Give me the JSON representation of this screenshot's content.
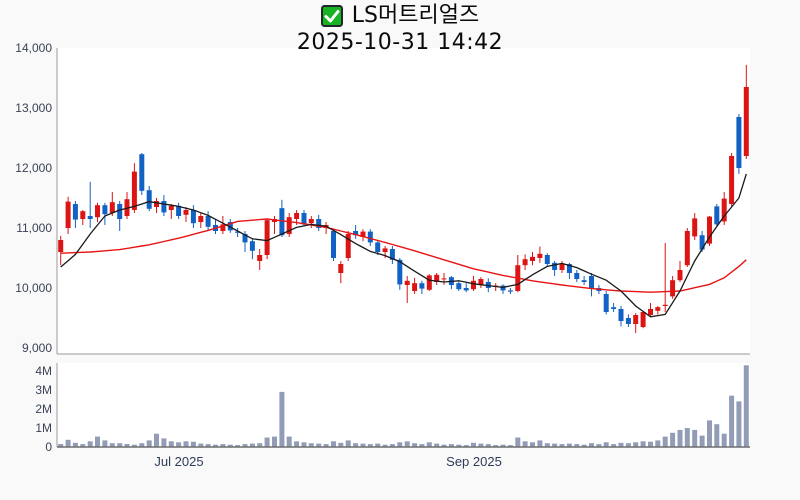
{
  "header": {
    "title": "LS머트리얼즈",
    "subtitle": "2025-10-31 14:42",
    "checkbox_icon": "green-checkbox",
    "checkbox_color": "#17b322"
  },
  "chart_data": {
    "type": "candlestick",
    "title": "LS머트리얼즈",
    "timestamp": "2025-10-31 14:42",
    "legend_position": "none",
    "grid": false,
    "price_axis": {
      "labels": [
        "14,000",
        "13,000",
        "12,000",
        "11,000",
        "10,000",
        "9,000"
      ],
      "values": [
        14000,
        13000,
        12000,
        11000,
        10000,
        9000
      ],
      "range": [
        8900,
        14000
      ]
    },
    "volume_axis": {
      "labels": [
        "4M",
        "3M",
        "2M",
        "1M",
        "0"
      ],
      "values": [
        4000000,
        3000000,
        2000000,
        1000000,
        0
      ]
    },
    "x_ticks": [
      {
        "label": "Jul 2025",
        "index": 16
      },
      {
        "label": "Sep 2025",
        "index": 56
      }
    ],
    "colors": {
      "up": "#dd1414",
      "down": "#1261c4",
      "volume_bar": "#929cb6",
      "ma_fast": "#1a1a1a",
      "ma_slow": "#e81414",
      "axis": "#9a9a9a",
      "plot_bg": "#ffffff",
      "page_bg": "#f9f9f9"
    },
    "ohlcv_order": [
      "open",
      "high",
      "low",
      "close",
      "volume_millions"
    ],
    "candles": [
      [
        10600,
        10870,
        10380,
        10800,
        0.16
      ],
      [
        11000,
        11520,
        10900,
        11440,
        0.38
      ],
      [
        11400,
        11450,
        11000,
        11140,
        0.22
      ],
      [
        11150,
        11300,
        11050,
        11280,
        0.15
      ],
      [
        11200,
        11770,
        11000,
        11150,
        0.3
      ],
      [
        11180,
        11420,
        11100,
        11380,
        0.55
      ],
      [
        11380,
        11420,
        11050,
        11230,
        0.35
      ],
      [
        11250,
        11600,
        11200,
        11430,
        0.2
      ],
      [
        11400,
        11450,
        10950,
        11150,
        0.2
      ],
      [
        11200,
        11600,
        11150,
        11480,
        0.16
      ],
      [
        11300,
        12080,
        11250,
        11940,
        0.12
      ],
      [
        12230,
        12250,
        11550,
        11620,
        0.2
      ],
      [
        11630,
        11700,
        11280,
        11320,
        0.35
      ],
      [
        11350,
        11500,
        11250,
        11450,
        0.7
      ],
      [
        11450,
        11550,
        11200,
        11260,
        0.45
      ],
      [
        11300,
        11400,
        11150,
        11370,
        0.3
      ],
      [
        11370,
        11420,
        11150,
        11200,
        0.25
      ],
      [
        11220,
        11350,
        11100,
        11300,
        0.3
      ],
      [
        11300,
        11380,
        11000,
        11080,
        0.28
      ],
      [
        11100,
        11250,
        11000,
        11200,
        0.18
      ],
      [
        11200,
        11280,
        10950,
        11020,
        0.15
      ],
      [
        11050,
        11150,
        10900,
        10950,
        0.12
      ],
      [
        10950,
        11200,
        10900,
        11060,
        0.15
      ],
      [
        11100,
        11150,
        10920,
        10960,
        0.12
      ],
      [
        10940,
        11000,
        10850,
        10920,
        0.1
      ],
      [
        10900,
        10950,
        10600,
        10760,
        0.15
      ],
      [
        10780,
        10820,
        10480,
        10620,
        0.18
      ],
      [
        10450,
        10650,
        10300,
        10550,
        0.2
      ],
      [
        10550,
        11150,
        10480,
        11130,
        0.5
      ],
      [
        11100,
        11200,
        10900,
        11150,
        0.55
      ],
      [
        11330,
        11470,
        10850,
        10880,
        2.9
      ],
      [
        10900,
        11250,
        10850,
        11180,
        0.55
      ],
      [
        11150,
        11300,
        11050,
        11250,
        0.3
      ],
      [
        11250,
        11300,
        11030,
        11060,
        0.25
      ],
      [
        11080,
        11200,
        11000,
        11150,
        0.2
      ],
      [
        11150,
        11220,
        10950,
        11000,
        0.18
      ],
      [
        11000,
        11100,
        10900,
        11050,
        0.15
      ],
      [
        10950,
        10980,
        10450,
        10500,
        0.3
      ],
      [
        10250,
        10450,
        10080,
        10400,
        0.22
      ],
      [
        10500,
        10950,
        10450,
        10900,
        0.35
      ],
      [
        10950,
        11050,
        10820,
        10880,
        0.2
      ],
      [
        10850,
        10980,
        10780,
        10940,
        0.18
      ],
      [
        10940,
        10980,
        10700,
        10760,
        0.15
      ],
      [
        10760,
        10800,
        10550,
        10600,
        0.18
      ],
      [
        10600,
        10700,
        10500,
        10660,
        0.12
      ],
      [
        10650,
        10700,
        10400,
        10470,
        0.15
      ],
      [
        10470,
        10500,
        9970,
        10060,
        0.25
      ],
      [
        10050,
        10200,
        9750,
        10120,
        0.3
      ],
      [
        9950,
        10170,
        9900,
        10080,
        0.2
      ],
      [
        10080,
        10120,
        9900,
        9990,
        0.15
      ],
      [
        9970,
        10230,
        9950,
        10210,
        0.25
      ],
      [
        10100,
        10250,
        10050,
        10220,
        0.18
      ],
      [
        10150,
        10250,
        10050,
        10160,
        0.12
      ],
      [
        10180,
        10200,
        9980,
        10050,
        0.15
      ],
      [
        10080,
        10120,
        9950,
        9980,
        0.12
      ],
      [
        10000,
        10080,
        9930,
        9960,
        0.1
      ],
      [
        9980,
        10200,
        9950,
        10120,
        0.22
      ],
      [
        10050,
        10180,
        10000,
        10150,
        0.18
      ],
      [
        10100,
        10160,
        9930,
        10000,
        0.15
      ],
      [
        10020,
        10080,
        9950,
        10040,
        0.1
      ],
      [
        10040,
        10060,
        9900,
        9960,
        0.12
      ],
      [
        9960,
        10000,
        9900,
        9940,
        0.1
      ],
      [
        9950,
        10550,
        9930,
        10380,
        0.5
      ],
      [
        10380,
        10560,
        10300,
        10480,
        0.3
      ],
      [
        10450,
        10600,
        10380,
        10520,
        0.25
      ],
      [
        10500,
        10690,
        10420,
        10570,
        0.35
      ],
      [
        10550,
        10580,
        10350,
        10400,
        0.2
      ],
      [
        10420,
        10450,
        10200,
        10300,
        0.18
      ],
      [
        10300,
        10450,
        10250,
        10400,
        0.15
      ],
      [
        10400,
        10420,
        10150,
        10250,
        0.18
      ],
      [
        10250,
        10300,
        10100,
        10150,
        0.15
      ],
      [
        10130,
        10200,
        10050,
        10100,
        0.12
      ],
      [
        10200,
        10250,
        9860,
        9990,
        0.2
      ],
      [
        10000,
        10050,
        9900,
        9950,
        0.15
      ],
      [
        9900,
        9950,
        9560,
        9600,
        0.25
      ],
      [
        9680,
        9750,
        9600,
        9650,
        0.15
      ],
      [
        9650,
        9700,
        9360,
        9450,
        0.22
      ],
      [
        9500,
        9560,
        9350,
        9400,
        0.2
      ],
      [
        9400,
        9580,
        9250,
        9550,
        0.25
      ],
      [
        9350,
        9620,
        9330,
        9600,
        0.3
      ],
      [
        9550,
        9750,
        9520,
        9650,
        0.28
      ],
      [
        9620,
        9700,
        9560,
        9680,
        0.35
      ],
      [
        9700,
        10750,
        9600,
        9720,
        0.55
      ],
      [
        9860,
        10200,
        9820,
        10130,
        0.75
      ],
      [
        10130,
        10450,
        10100,
        10300,
        0.9
      ],
      [
        10380,
        11000,
        10350,
        10950,
        1.0
      ],
      [
        10860,
        11250,
        10800,
        11160,
        0.9
      ],
      [
        10880,
        10950,
        10600,
        10640,
        0.6
      ],
      [
        10740,
        11200,
        10700,
        11190,
        1.4
      ],
      [
        11360,
        11400,
        11020,
        11060,
        1.2
      ],
      [
        11110,
        11600,
        11050,
        11490,
        0.7
      ],
      [
        11400,
        12250,
        11350,
        12200,
        2.7
      ],
      [
        12850,
        12900,
        11900,
        12000,
        2.4
      ],
      [
        12200,
        13720,
        12150,
        13350,
        4.3
      ]
    ],
    "ma_fast_points": [
      [
        0,
        10350
      ],
      [
        2,
        10560
      ],
      [
        4,
        10900
      ],
      [
        6,
        11200
      ],
      [
        8,
        11300
      ],
      [
        10,
        11360
      ],
      [
        12,
        11440
      ],
      [
        14,
        11400
      ],
      [
        16,
        11360
      ],
      [
        18,
        11300
      ],
      [
        20,
        11210
      ],
      [
        22,
        11080
      ],
      [
        24,
        10950
      ],
      [
        26,
        10820
      ],
      [
        28,
        10790
      ],
      [
        30,
        10900
      ],
      [
        32,
        11010
      ],
      [
        34,
        11060
      ],
      [
        36,
        11030
      ],
      [
        38,
        10890
      ],
      [
        40,
        10740
      ],
      [
        42,
        10610
      ],
      [
        44,
        10540
      ],
      [
        46,
        10440
      ],
      [
        48,
        10280
      ],
      [
        50,
        10130
      ],
      [
        52,
        10100
      ],
      [
        54,
        10120
      ],
      [
        56,
        10070
      ],
      [
        58,
        10040
      ],
      [
        60,
        10010
      ],
      [
        62,
        10060
      ],
      [
        64,
        10220
      ],
      [
        66,
        10360
      ],
      [
        68,
        10410
      ],
      [
        70,
        10340
      ],
      [
        72,
        10230
      ],
      [
        74,
        10130
      ],
      [
        76,
        9950
      ],
      [
        78,
        9700
      ],
      [
        80,
        9520
      ],
      [
        82,
        9560
      ],
      [
        84,
        9950
      ],
      [
        86,
        10450
      ],
      [
        88,
        10850
      ],
      [
        90,
        11200
      ],
      [
        92,
        11500
      ],
      [
        93,
        11900
      ]
    ],
    "ma_slow_points": [
      [
        0,
        10580
      ],
      [
        4,
        10600
      ],
      [
        8,
        10640
      ],
      [
        12,
        10720
      ],
      [
        16,
        10830
      ],
      [
        20,
        10960
      ],
      [
        24,
        11110
      ],
      [
        28,
        11150
      ],
      [
        32,
        11090
      ],
      [
        36,
        11010
      ],
      [
        40,
        10890
      ],
      [
        44,
        10760
      ],
      [
        48,
        10620
      ],
      [
        52,
        10470
      ],
      [
        56,
        10320
      ],
      [
        60,
        10210
      ],
      [
        64,
        10120
      ],
      [
        68,
        10050
      ],
      [
        72,
        9990
      ],
      [
        76,
        9950
      ],
      [
        80,
        9930
      ],
      [
        84,
        9950
      ],
      [
        88,
        10060
      ],
      [
        90,
        10170
      ],
      [
        92,
        10360
      ],
      [
        93,
        10470
      ]
    ]
  }
}
